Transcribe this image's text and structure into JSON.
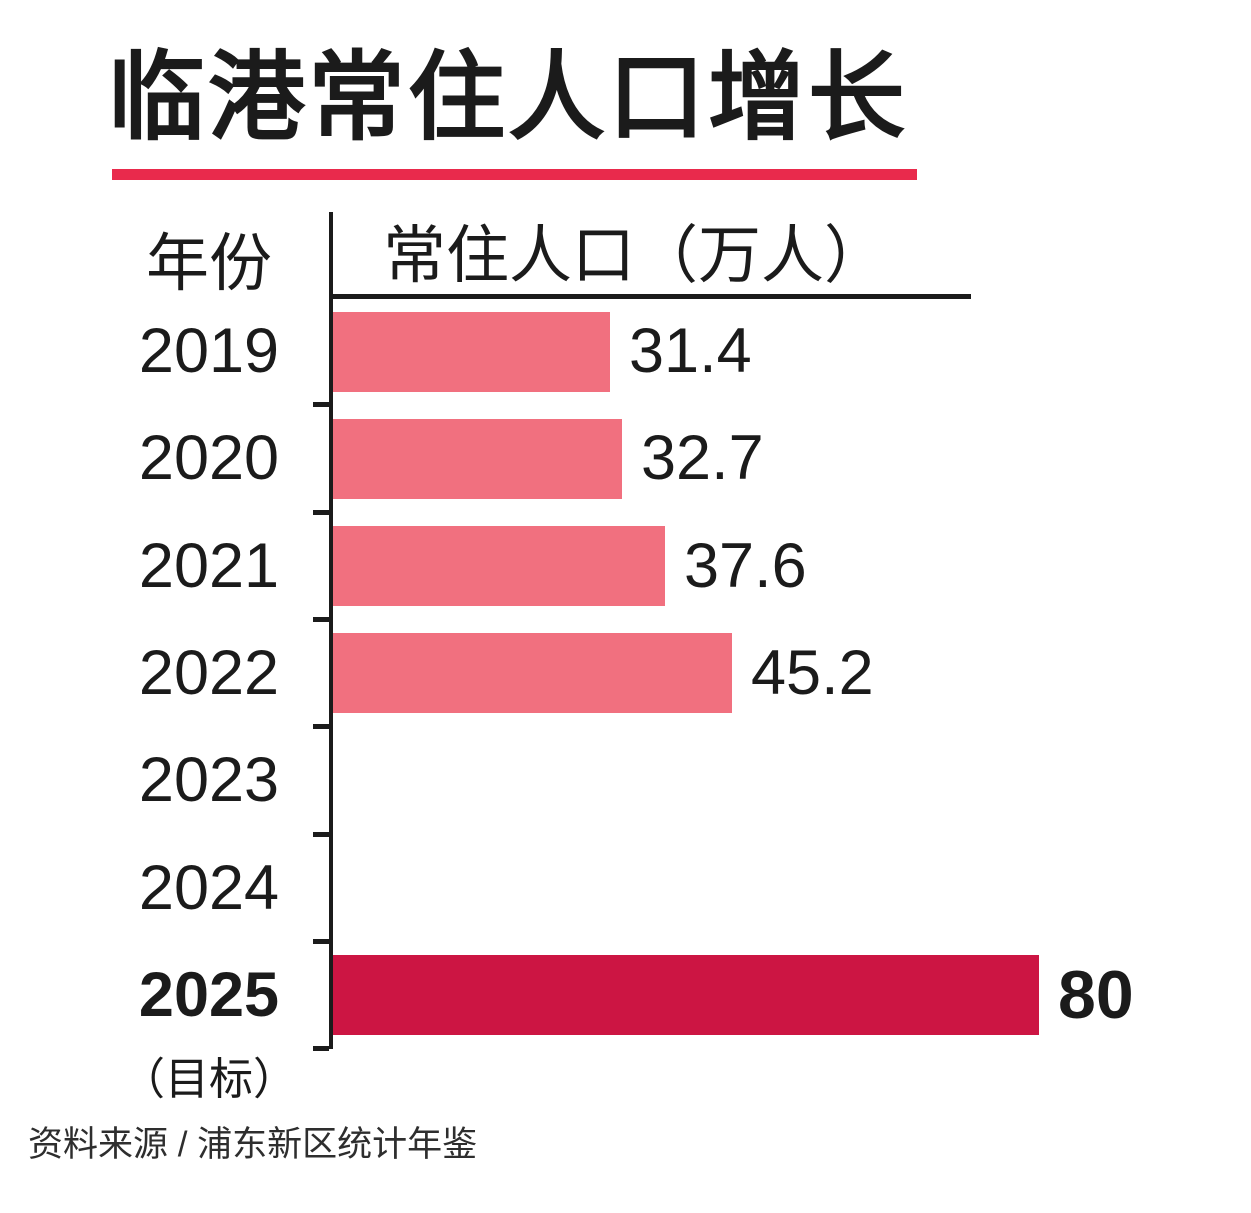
{
  "title": "临港常住人口增长",
  "header": {
    "year_col": "年份",
    "value_col": "常住人口（万人）"
  },
  "footer": {
    "source": "资料来源 / 浦东新区统计年鉴"
  },
  "colors": {
    "bar_pink": "#F1707F",
    "bar_crimson": "#CC1543",
    "title_rule_red": "#E92A4C",
    "axis_black": "#1b1b1b"
  },
  "chart_data": {
    "type": "bar",
    "orientation": "horizontal",
    "title": "临港常住人口增长",
    "ylabel": "年份",
    "xlabel": "常住人口（万人）",
    "xlim": [
      0,
      80
    ],
    "grid": false,
    "legend": false,
    "categories": [
      "2019",
      "2020",
      "2021",
      "2022",
      "2023",
      "2024",
      "2025"
    ],
    "series": [
      {
        "name": "常住人口（万人）",
        "values": [
          31.4,
          32.7,
          37.6,
          45.2,
          null,
          null,
          80
        ]
      }
    ],
    "value_labels": [
      "31.4",
      "32.7",
      "37.6",
      "45.2",
      "",
      "",
      "80"
    ],
    "highlight_category": "2025",
    "highlight_note": "（目标）",
    "source": "资料来源 / 浦东新区统计年鉴"
  }
}
